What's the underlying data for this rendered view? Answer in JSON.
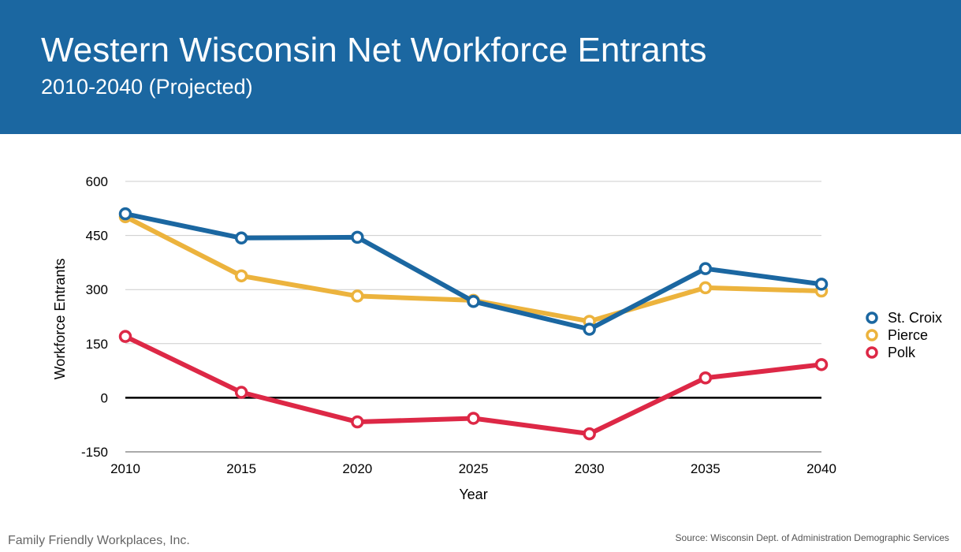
{
  "header": {
    "title": "Western Wisconsin Net Workforce Entrants",
    "subtitle": "2010-2040 (Projected)"
  },
  "footer": {
    "organization": "Family Friendly Workplaces, Inc.",
    "source": "Source: Wisconsin Dept. of Administration Demographic Services"
  },
  "chart_data": {
    "type": "line",
    "title": "Western Wisconsin Net Workforce Entrants",
    "subtitle": "2010-2040 (Projected)",
    "xlabel": "Year",
    "ylabel": "Workforce Entrants",
    "x": [
      "2010",
      "2015",
      "2020",
      "2025",
      "2030",
      "2035",
      "2040"
    ],
    "ylim": [
      -150,
      600
    ],
    "yticks": [
      "600",
      "450",
      "300",
      "150",
      "0",
      "-150"
    ],
    "grid": true,
    "legend_position": "right",
    "series": [
      {
        "name": "St. Croix",
        "color": "#1b67a1",
        "values": [
          510,
          443,
          445,
          267,
          190,
          358,
          315
        ]
      },
      {
        "name": "Pierce",
        "color": "#ecb33d",
        "values": [
          502,
          338,
          282,
          270,
          212,
          305,
          296
        ]
      },
      {
        "name": "Polk",
        "color": "#dd2846",
        "values": [
          170,
          15,
          -67,
          -57,
          -100,
          55,
          92
        ]
      }
    ]
  }
}
